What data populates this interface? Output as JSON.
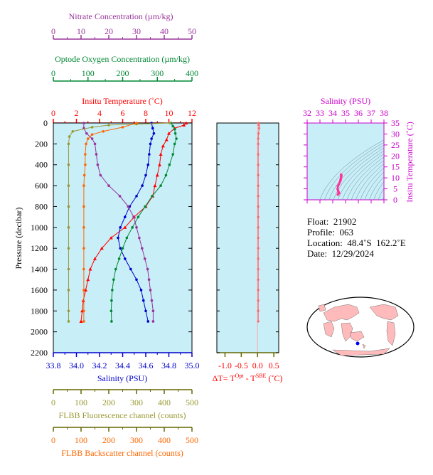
{
  "chart_data": [
    {
      "type": "line",
      "panel": "main-profile",
      "y_axis": {
        "label": "Pressure (decibar)",
        "range": [
          0,
          2200
        ],
        "ticks": [
          0,
          200,
          400,
          600,
          800,
          1000,
          1200,
          1400,
          1600,
          1800,
          2000,
          2200
        ],
        "inverted": true
      },
      "axes": {
        "nitrate": {
          "label": "Nitrate Concentration (µm/kg)",
          "range": [
            0,
            50
          ],
          "ticks": [
            0,
            10,
            20,
            30,
            40,
            50
          ],
          "color": "#993399"
        },
        "oxygen": {
          "label": "Optode Oxygen Concentration (µm/kg)",
          "range": [
            0,
            400
          ],
          "ticks": [
            0,
            100,
            200,
            300,
            400
          ],
          "color": "#008833"
        },
        "temperature": {
          "label": "Insitu Temperature (˚C)",
          "range": [
            0,
            12
          ],
          "ticks": [
            0,
            2,
            4,
            6,
            8,
            10,
            12
          ],
          "color": "#ff0000"
        },
        "salinity": {
          "label": "Salinity (PSU)",
          "range": [
            33.8,
            35.0
          ],
          "ticks": [
            "33.8",
            "34.0",
            "34.2",
            "34.4",
            "34.6",
            "34.8",
            "35.0"
          ],
          "color": "#0000cc"
        },
        "fluorescence": {
          "label": "FLBB Fluorescence channel (counts)",
          "range": [
            0,
            500
          ],
          "ticks": [
            0,
            100,
            200,
            300,
            400,
            500
          ],
          "color": "#999933"
        },
        "backscatter": {
          "label": "FLBB Backscatter channel (counts)",
          "range": [
            0,
            500
          ],
          "ticks": [
            0,
            100,
            200,
            300,
            400,
            500
          ],
          "color": "#ff6600"
        }
      },
      "series": [
        {
          "axis": "temperature",
          "marker": "triangle",
          "color": "#ff0000",
          "points": [
            [
              11.5,
              0
            ],
            [
              11.3,
              20
            ],
            [
              10.5,
              50
            ],
            [
              10.0,
              100
            ],
            [
              9.8,
              160
            ],
            [
              9.5,
              220
            ],
            [
              9.3,
              300
            ],
            [
              9.2,
              400
            ],
            [
              9.0,
              500
            ],
            [
              8.8,
              600
            ],
            [
              8.6,
              700
            ],
            [
              8.0,
              800
            ],
            [
              7.0,
              900
            ],
            [
              6.2,
              1000
            ],
            [
              5.0,
              1100
            ],
            [
              4.2,
              1200
            ],
            [
              3.6,
              1300
            ],
            [
              3.2,
              1400
            ],
            [
              3.0,
              1500
            ],
            [
              2.8,
              1600
            ],
            [
              2.6,
              1700
            ],
            [
              2.5,
              1800
            ],
            [
              2.4,
              1900
            ]
          ]
        },
        {
          "axis": "salinity",
          "marker": "circle",
          "color": "#0000cc",
          "points": [
            [
              34.65,
              0
            ],
            [
              34.66,
              50
            ],
            [
              34.67,
              100
            ],
            [
              34.65,
              150
            ],
            [
              34.64,
              200
            ],
            [
              34.63,
              300
            ],
            [
              34.62,
              400
            ],
            [
              34.6,
              500
            ],
            [
              34.57,
              600
            ],
            [
              34.52,
              700
            ],
            [
              34.46,
              800
            ],
            [
              34.42,
              900
            ],
            [
              34.38,
              1000
            ],
            [
              34.36,
              1100
            ],
            [
              34.38,
              1200
            ],
            [
              34.42,
              1300
            ],
            [
              34.47,
              1400
            ],
            [
              34.52,
              1500
            ],
            [
              34.56,
              1600
            ],
            [
              34.58,
              1700
            ],
            [
              34.6,
              1800
            ],
            [
              34.62,
              1900
            ]
          ]
        },
        {
          "axis": "oxygen",
          "marker": "circle",
          "color": "#008833",
          "points": [
            [
              340,
              0
            ],
            [
              345,
              30
            ],
            [
              350,
              60
            ],
            [
              352,
              100
            ],
            [
              355,
              150
            ],
            [
              350,
              200
            ],
            [
              345,
              300
            ],
            [
              335,
              400
            ],
            [
              325,
              500
            ],
            [
              310,
              600
            ],
            [
              285,
              700
            ],
            [
              265,
              800
            ],
            [
              245,
              900
            ],
            [
              228,
              1000
            ],
            [
              212,
              1100
            ],
            [
              200,
              1200
            ],
            [
              190,
              1300
            ],
            [
              180,
              1400
            ],
            [
              174,
              1500
            ],
            [
              170,
              1600
            ],
            [
              168,
              1700
            ],
            [
              167,
              1800
            ],
            [
              168,
              1900
            ]
          ]
        },
        {
          "axis": "nitrate",
          "marker": "circle",
          "color": "#993399",
          "points": [
            [
              11,
              0
            ],
            [
              11,
              50
            ],
            [
              12,
              100
            ],
            [
              14,
              150
            ],
            [
              15,
              200
            ],
            [
              15.5,
              300
            ],
            [
              16,
              400
            ],
            [
              17,
              500
            ],
            [
              20,
              600
            ],
            [
              24,
              700
            ],
            [
              27,
              800
            ],
            [
              29,
              900
            ],
            [
              30,
              1000
            ],
            [
              31,
              1100
            ],
            [
              32,
              1200
            ],
            [
              33,
              1300
            ],
            [
              34,
              1400
            ],
            [
              34.5,
              1500
            ],
            [
              35,
              1600
            ],
            [
              35.5,
              1700
            ],
            [
              36,
              1800
            ],
            [
              36,
              1900
            ]
          ]
        },
        {
          "axis": "fluorescence",
          "marker": "circle",
          "color": "#999933",
          "points": [
            [
              420,
              0
            ],
            [
              300,
              10
            ],
            [
              200,
              20
            ],
            [
              140,
              40
            ],
            [
              70,
              80
            ],
            [
              58,
              130
            ],
            [
              55,
              200
            ],
            [
              55,
              400
            ],
            [
              55,
              600
            ],
            [
              55,
              800
            ],
            [
              55,
              1000
            ],
            [
              55,
              1200
            ],
            [
              55,
              1400
            ],
            [
              55,
              1600
            ],
            [
              55,
              1800
            ],
            [
              55,
              1900
            ]
          ]
        },
        {
          "axis": "backscatter",
          "marker": "circle",
          "color": "#ff6600",
          "points": [
            [
              300,
              0
            ],
            [
              250,
              40
            ],
            [
              180,
              80
            ],
            [
              140,
              110
            ],
            [
              125,
              150
            ],
            [
              118,
              200
            ],
            [
              115,
              300
            ],
            [
              115,
              400
            ],
            [
              112,
              500
            ],
            [
              110,
              600
            ],
            [
              110,
              800
            ],
            [
              110,
              1000
            ],
            [
              110,
              1200
            ],
            [
              110,
              1400
            ],
            [
              110,
              1600
            ],
            [
              110,
              1800
            ],
            [
              110,
              1900
            ]
          ]
        }
      ]
    },
    {
      "type": "line",
      "panel": "delta-temperature",
      "x_axis": {
        "label": "ΔT= T^Opt - T^SBE (˚C)",
        "range": [
          -1.25,
          0.65
        ],
        "ticks": [
          "-1.0",
          "-0.5",
          "0.0",
          "0.5"
        ],
        "color": "#ff0000"
      },
      "y_axis": {
        "range": [
          0,
          2200
        ],
        "inverted": true
      },
      "series": [
        {
          "name": "",
          "color": "#ff6666",
          "points": [
            [
              0.03,
              0
            ],
            [
              0.04,
              20
            ],
            [
              0.05,
              50
            ],
            [
              0.03,
              100
            ],
            [
              0.02,
              150
            ],
            [
              0.02,
              200
            ],
            [
              0.02,
              300
            ],
            [
              0.02,
              400
            ],
            [
              0.02,
              500
            ],
            [
              0.02,
              600
            ],
            [
              0.02,
              700
            ],
            [
              0.02,
              800
            ],
            [
              0.02,
              900
            ],
            [
              0.02,
              1000
            ],
            [
              0.02,
              1100
            ],
            [
              0.02,
              1200
            ],
            [
              0.02,
              1300
            ],
            [
              0.02,
              1400
            ],
            [
              0.02,
              1500
            ],
            [
              0.02,
              1600
            ],
            [
              0.02,
              1700
            ],
            [
              0.02,
              1800
            ],
            [
              0.02,
              1900
            ]
          ]
        }
      ]
    },
    {
      "type": "scatter",
      "panel": "ts-diagram",
      "x_axis": {
        "label": "Salinity (PSU)",
        "range": [
          32,
          38
        ],
        "ticks": [
          32,
          33,
          34,
          35,
          36,
          37,
          38
        ],
        "color": "#cc00cc"
      },
      "y_axis": {
        "label": "Insitu Temperature (˚C)",
        "range": [
          0,
          35
        ],
        "ticks": [
          0,
          5,
          10,
          15,
          20,
          25,
          30,
          35
        ],
        "color": "#cc00cc"
      },
      "series": [
        {
          "name": "",
          "color": "#ff3399",
          "points": [
            [
              34.4,
              2.4
            ],
            [
              34.5,
              3.0
            ],
            [
              34.45,
              3.5
            ],
            [
              34.42,
              4.2
            ],
            [
              34.38,
              5.0
            ],
            [
              34.4,
              6.2
            ],
            [
              34.47,
              7.0
            ],
            [
              34.55,
              8.0
            ],
            [
              34.6,
              8.8
            ],
            [
              34.62,
              9.2
            ],
            [
              34.64,
              9.8
            ],
            [
              34.66,
              10.5
            ],
            [
              34.67,
              11.3
            ],
            [
              34.65,
              11.5
            ]
          ]
        }
      ]
    }
  ],
  "info": {
    "float": "Float:  21902",
    "profile": "Profile:  063",
    "location": "Location:  48.4˚S  162.2˚E",
    "date": "Date:  12/29/2024"
  },
  "map": {
    "marker_color": "#0000ff",
    "land_color": "#ffbbbb",
    "ocean_color": "#ffffff"
  },
  "colors": {
    "panel_bg": "#c8eef8",
    "axis_olive": "#666600"
  }
}
